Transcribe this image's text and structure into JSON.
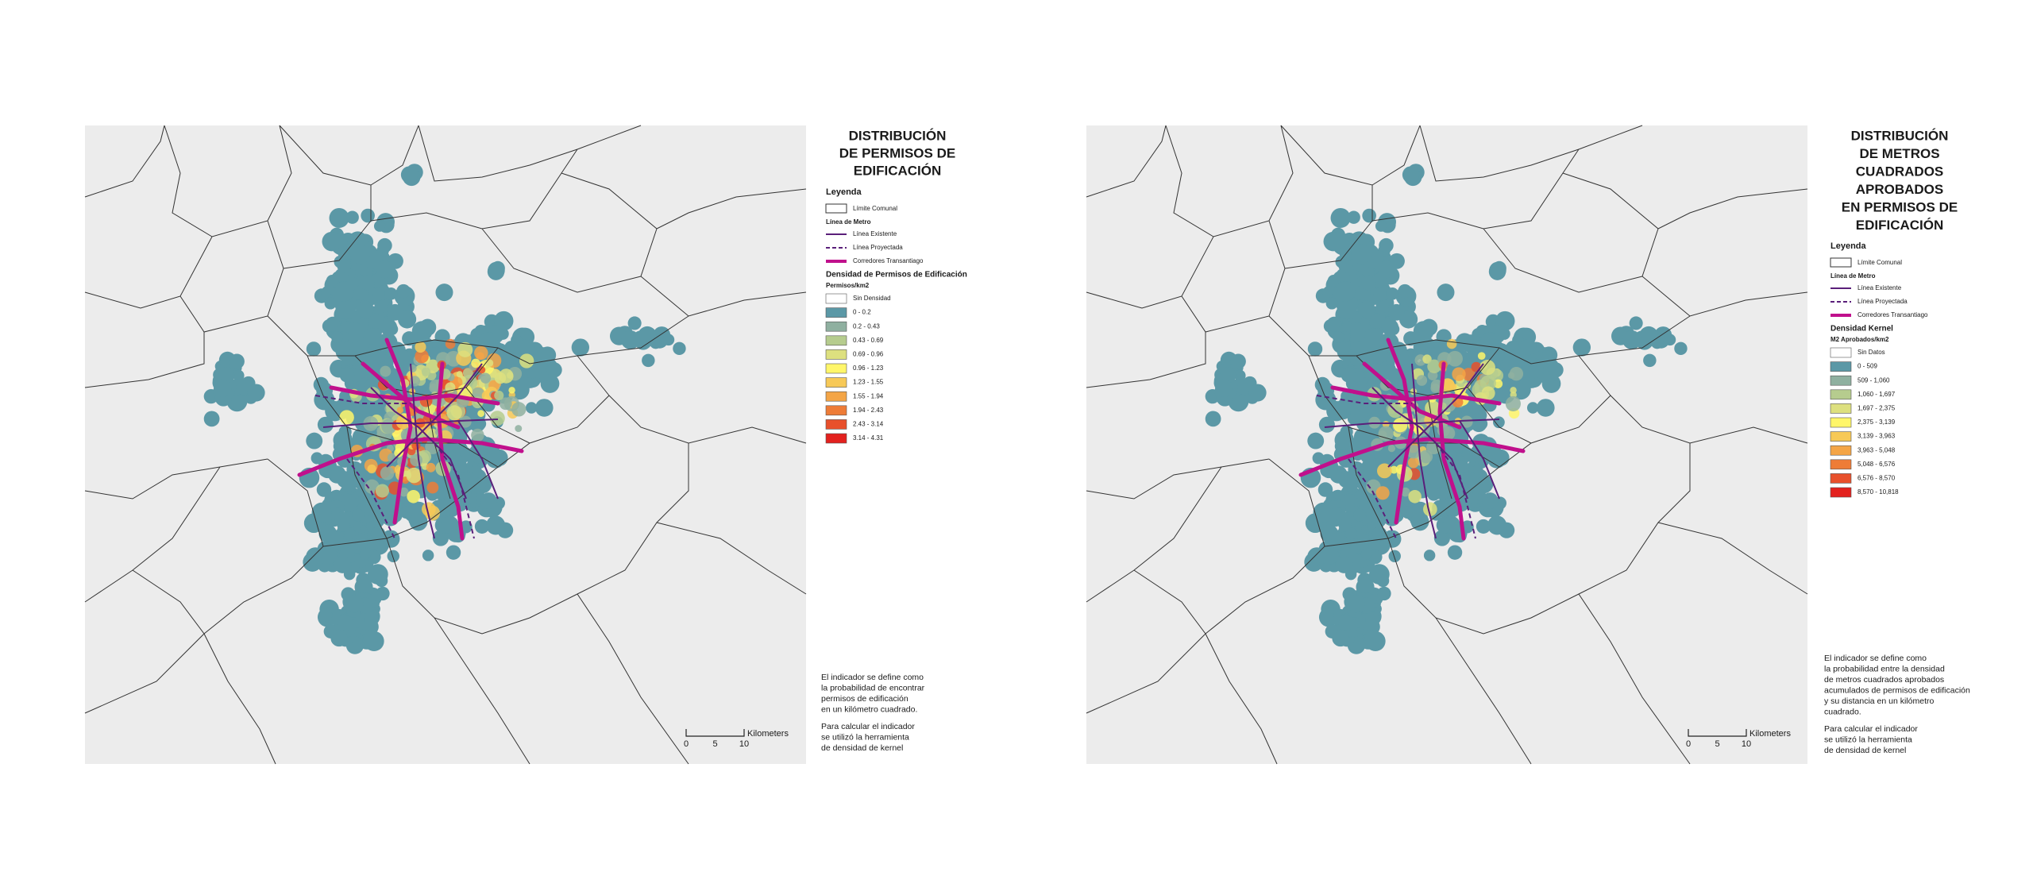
{
  "panels": [
    {
      "title": [
        "DISTRIBUCIÓN",
        "DE PERMISOS DE",
        "EDIFICACIÓN"
      ],
      "legend": {
        "heading": "Leyenda",
        "boundary": "Límite Comunal",
        "metro_heading": "Línea de Metro",
        "metro_existing": "Línea Existente",
        "metro_projected": "Línea Proyectada",
        "corridors": "Corredores Transantiago",
        "density_heading": "Densidad de Permisos de Edificación",
        "unit": "Permisos/km2",
        "classes": [
          {
            "label": "Sin Densidad",
            "color": "#ffffff"
          },
          {
            "label": "0 - 0.2",
            "color": "#5b98a6"
          },
          {
            "label": "0.2 - 0.43",
            "color": "#8fb0a0"
          },
          {
            "label": "0.43 - 0.69",
            "color": "#b6cc8e"
          },
          {
            "label": "0.69 - 0.96",
            "color": "#dde07f"
          },
          {
            "label": "0.96 - 1.23",
            "color": "#fff66a"
          },
          {
            "label": "1.23 - 1.55",
            "color": "#f7c957"
          },
          {
            "label": "1.55 - 1.94",
            "color": "#f4a546"
          },
          {
            "label": "1.94 - 2.43",
            "color": "#ee7c37"
          },
          {
            "label": "2.43 - 3.14",
            "color": "#e8502c"
          },
          {
            "label": "3.14 - 4.31",
            "color": "#e3211e"
          }
        ]
      },
      "description": [
        [
          "El indicador se define como",
          "la probabilidad de encontrar",
          "permisos de edificación",
          "en un kilómetro cuadrado."
        ],
        [
          "Para calcular el indicador",
          "se utilizó la herramienta",
          "de densidad de kernel"
        ]
      ],
      "scale": {
        "ticks": [
          0,
          5,
          10
        ],
        "unit": "Kilometers"
      }
    },
    {
      "title": [
        "DISTRIBUCIÓN",
        "DE METROS",
        "CUADRADOS",
        "APROBADOS",
        "EN PERMISOS DE",
        "EDIFICACIÓN"
      ],
      "legend": {
        "heading": "Leyenda",
        "boundary": "Límite Comunal",
        "metro_heading": "Línea de Metro",
        "metro_existing": "Línea Existente",
        "metro_projected": "Línea Proyectada",
        "corridors": "Corredores Transantiago",
        "density_heading": "Densidad Kernel",
        "unit": "M2 Aprobados/km2",
        "classes": [
          {
            "label": "Sin Datos",
            "color": "#ffffff"
          },
          {
            "label": "0 - 509",
            "color": "#5b98a6"
          },
          {
            "label": "509 - 1,060",
            "color": "#8fb0a0"
          },
          {
            "label": "1,060 - 1,697",
            "color": "#b6cc8e"
          },
          {
            "label": "1,697 - 2,375",
            "color": "#dde07f"
          },
          {
            "label": "2,375 - 3,139",
            "color": "#fff66a"
          },
          {
            "label": "3,139 - 3,963",
            "color": "#f7c957"
          },
          {
            "label": "3,963 - 5,048",
            "color": "#f4a546"
          },
          {
            "label": "5,048 - 6,576",
            "color": "#ee7c37"
          },
          {
            "label": "6,576 - 8,570",
            "color": "#e8502c"
          },
          {
            "label": "8,570 - 10,818",
            "color": "#e3211e"
          }
        ]
      },
      "description": [
        [
          "El indicador se define como",
          "la probabilidad entre la densidad",
          "de metros cuadrados aprobados",
          "acumulados de permisos de edificación",
          "y su distancia en un kilómetro",
          "cuadrado."
        ],
        [
          "Para calcular el indicador",
          "se utilizó la herramienta",
          "de densidad de kernel"
        ]
      ],
      "scale": {
        "ticks": [
          0,
          5,
          10
        ],
        "unit": "Kilometers"
      }
    }
  ]
}
